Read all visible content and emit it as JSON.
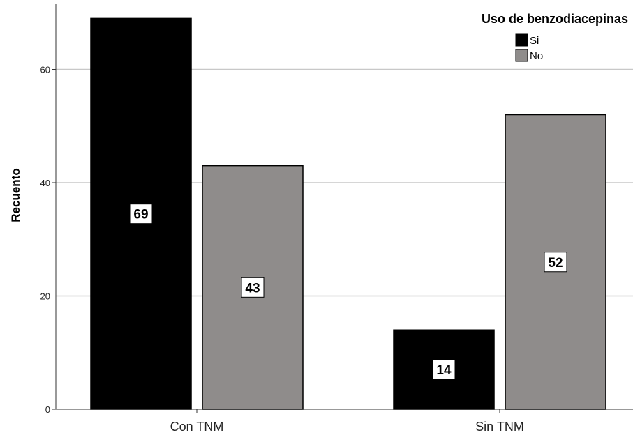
{
  "chart_data": {
    "type": "bar",
    "categories": [
      "Con TNM",
      "Sin TNM"
    ],
    "series": [
      {
        "name": "Si",
        "values": [
          69,
          14
        ],
        "color": "#000000"
      },
      {
        "name": "No",
        "values": [
          43,
          52
        ],
        "color": "#8f8c8b"
      }
    ],
    "ylabel": "Recuento",
    "ylim": [
      0,
      70
    ],
    "yticks": [
      0,
      20,
      40,
      60
    ],
    "legend": {
      "title": "Uso de benzodiacepinas",
      "position": "top-right"
    },
    "grid": true,
    "data_labels": true
  }
}
